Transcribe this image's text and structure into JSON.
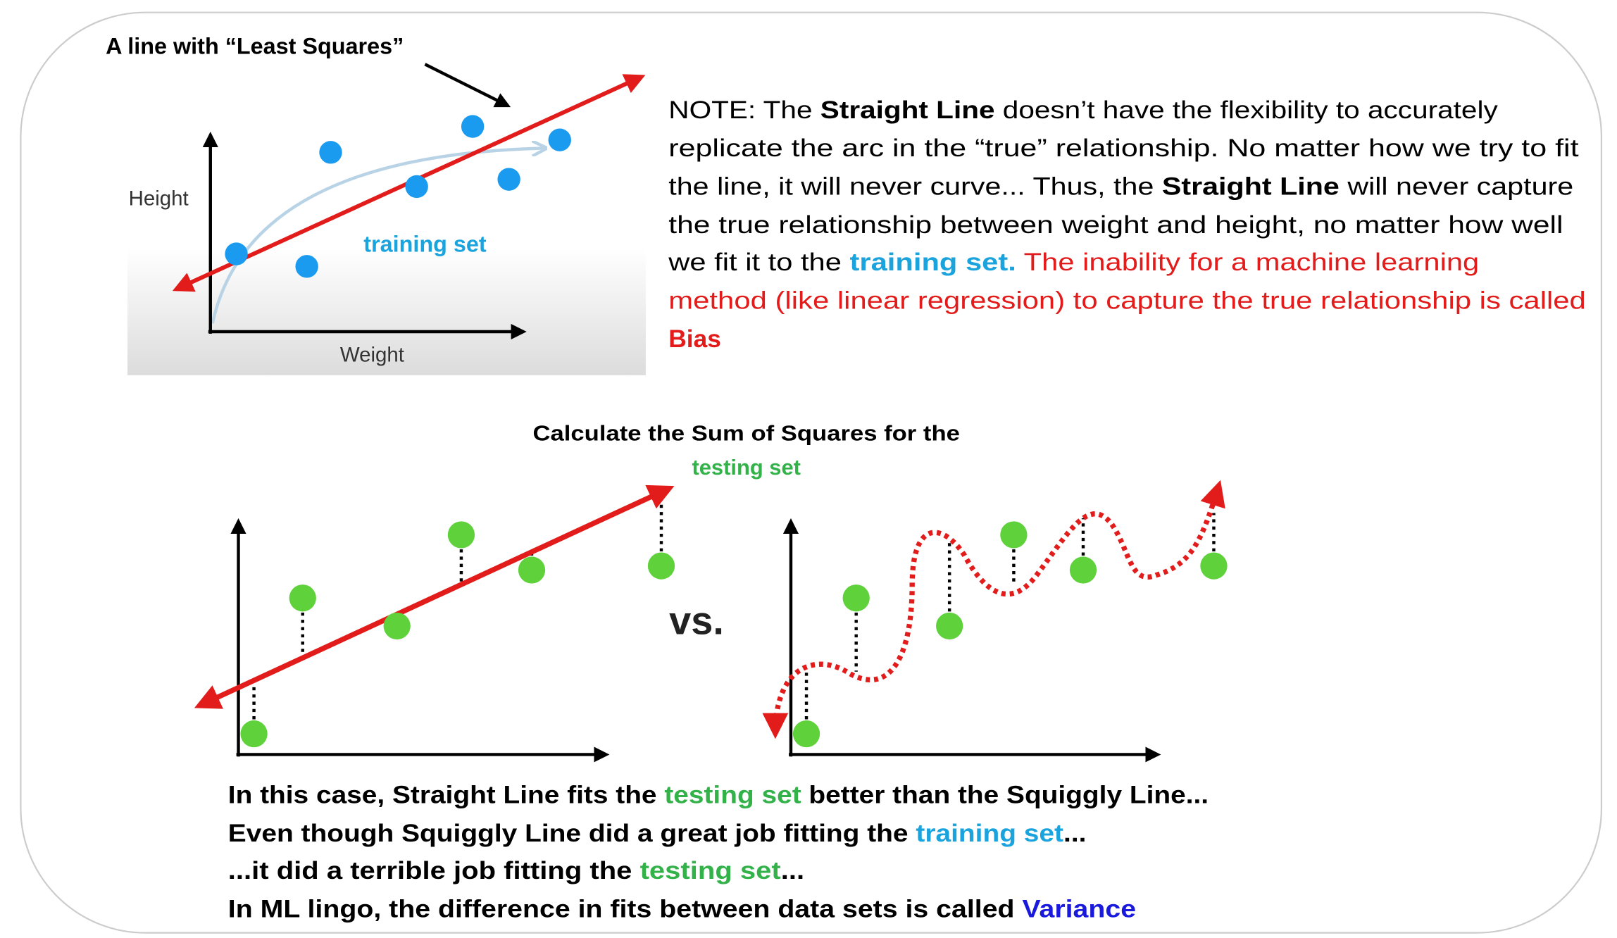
{
  "top_diagram": {
    "annotation": "A line with “Least Squares”",
    "y_axis": "Height",
    "x_axis": "Weight",
    "label": "training set"
  },
  "note": {
    "lines": [
      [
        "NOTE: The ",
        "Straight Line",
        " doesn’t have the flexibility to accurately"
      ],
      [
        "replicate the arc in the “true” relationship. No matter how we try to fit"
      ],
      [
        "the line, it will never curve... Thus, the ",
        "Straight Line",
        " will never capture"
      ],
      [
        "the true relationship between weight and height, no matter how well"
      ],
      [
        "we fit it to the ",
        "training set.",
        " The inability for a machine learning"
      ],
      [
        "method (like linear regression) to capture the true relationship is called"
      ],
      [
        "Bias"
      ]
    ]
  },
  "bottom": {
    "title": "Calculate the Sum of Squares for the",
    "title_highlight": "testing set",
    "vs": "vs."
  },
  "summary": {
    "lines": [
      [
        "In this case, Straight Line fits the ",
        "testing set",
        " better than the Squiggly Line..."
      ],
      [
        "Even though Squiggly Line did a great job fitting the ",
        "training set",
        "..."
      ],
      [
        "...it did a terrible job fitting the ",
        "testing set",
        "..."
      ],
      [
        "In ML lingo, the difference in fits between data sets is called ",
        "Variance"
      ]
    ]
  }
}
